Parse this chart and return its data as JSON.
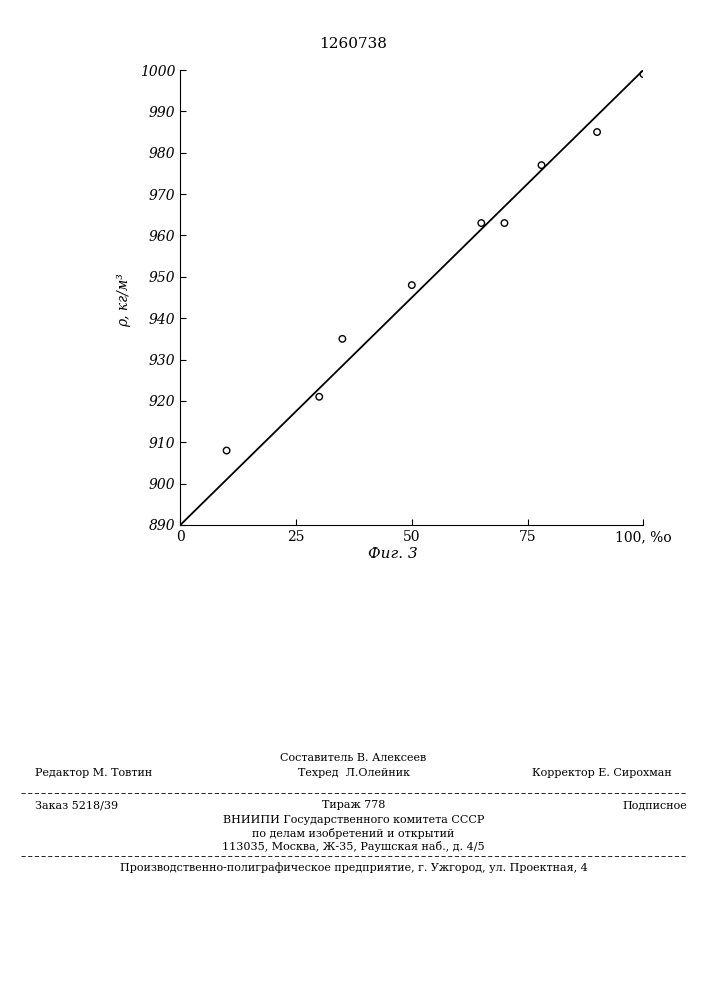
{
  "patent_number": "1260738",
  "xlim": [
    0,
    100
  ],
  "ylim": [
    890,
    1000
  ],
  "x_ticks": [
    0,
    25,
    50,
    75,
    100
  ],
  "y_ticks": [
    890,
    900,
    910,
    920,
    930,
    940,
    950,
    960,
    970,
    980,
    990,
    1000
  ],
  "line_x": [
    0,
    100
  ],
  "line_y": [
    890,
    1000
  ],
  "scatter_x": [
    10,
    30,
    35,
    50,
    65,
    70,
    78,
    90,
    100
  ],
  "scatter_y": [
    908,
    921,
    935,
    948,
    963,
    963,
    977,
    985,
    999
  ],
  "background_color": "#ffffff",
  "line_color": "#000000",
  "scatter_color": "#000000",
  "fig_caption": "Фиг. 3",
  "ylabel_rho": "ρ, кг/м",
  "xlabel_last_tick": "100, %о",
  "header_text": "1260738",
  "footer_sostavitel": "Составитель В. Алексеев",
  "footer_editor": "Редактор М. Товтин",
  "footer_tekhred": "Техред  Л.Олейник",
  "footer_korrektor": "Корректор Е. Сирохман",
  "footer_zakaz": "Заказ 5218/39",
  "footer_tirazh": "Тираж 778",
  "footer_podpisnoe": "Подписное",
  "footer_vniipи": "ВНИИПИ Государственного комитета СССР",
  "footer_podel": "по делам изобретений и открытий",
  "footer_addr": "113035, Москва, Ж-35, Раушская наб., д. 4/5",
  "footer_production": "Производственно-полиграфическое предприятие, г. Ужгород, ул. Проектная, 4"
}
